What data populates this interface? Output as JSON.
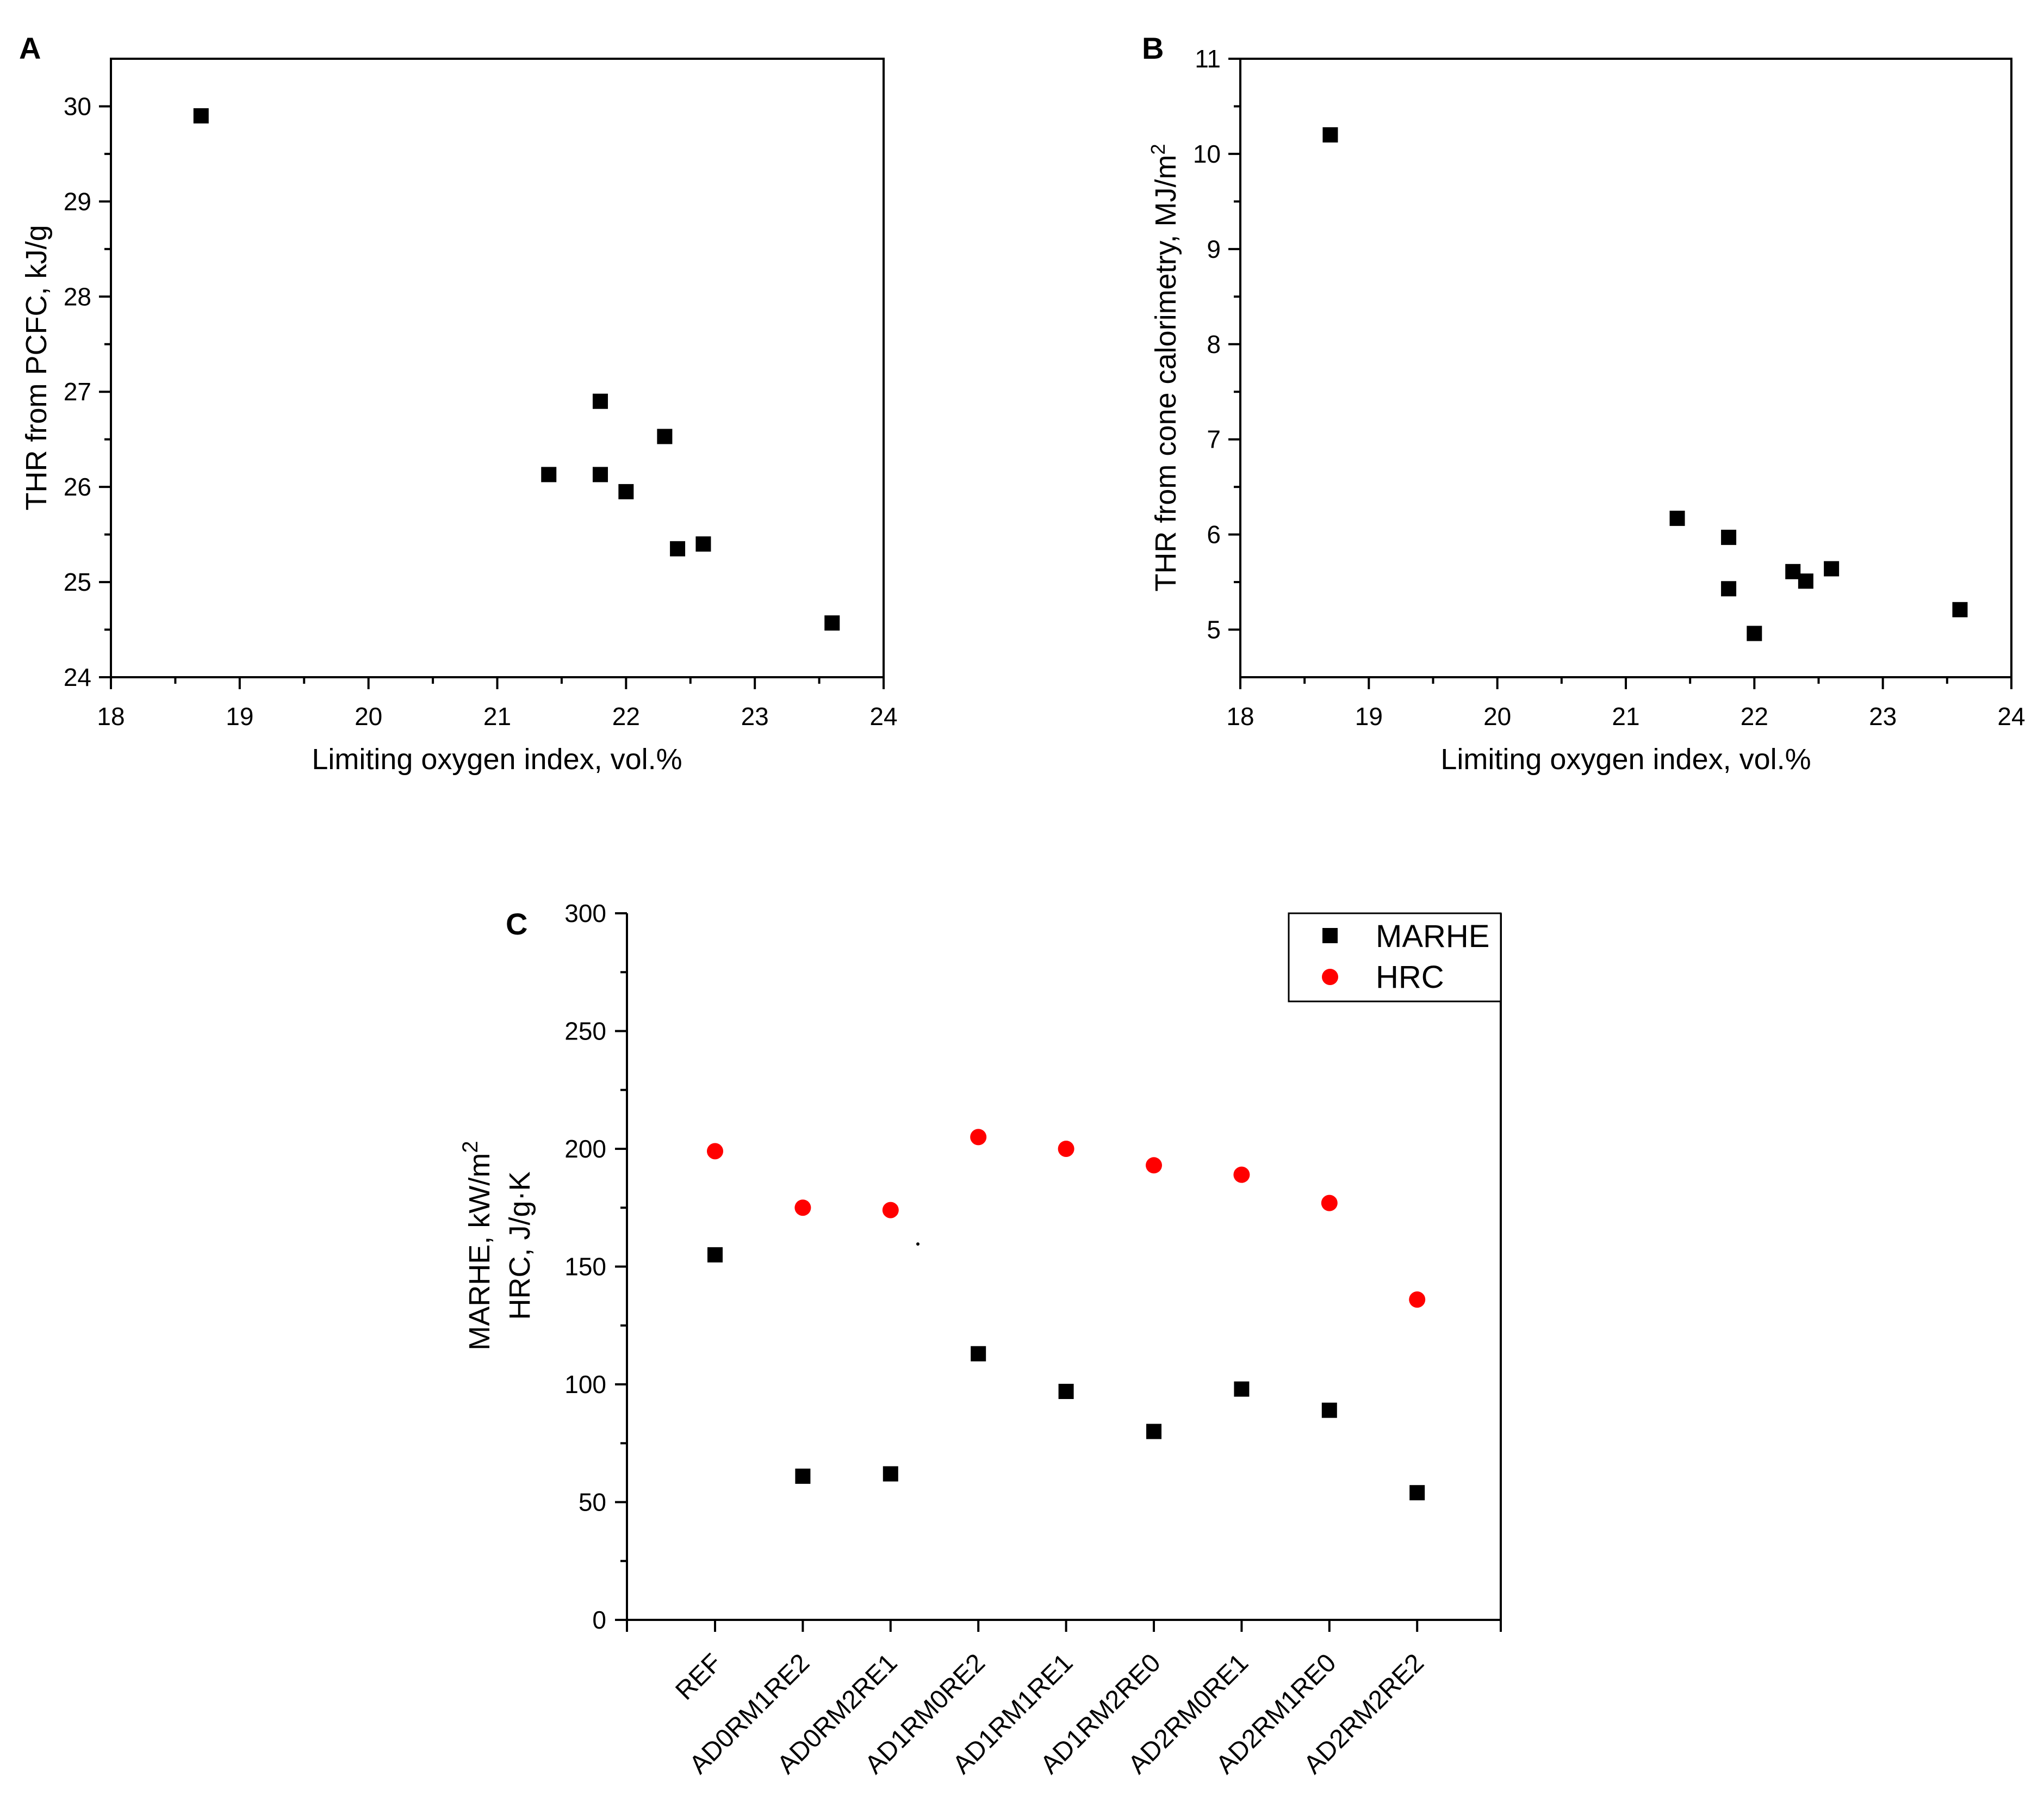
{
  "chart_data": [
    {
      "id": "A",
      "type": "scatter",
      "panel_label": "A",
      "xlabel": "Limiting oxygen index, vol.%",
      "ylabel": "THR from PCFC, kJ/g",
      "xlim": [
        18,
        24
      ],
      "ylim": [
        24,
        30.5
      ],
      "xticks": [
        18,
        19,
        20,
        21,
        22,
        23,
        24
      ],
      "yticks": [
        24,
        25,
        26,
        27,
        28,
        29,
        30
      ],
      "series": [
        {
          "name": "THR PCFC",
          "marker": "square",
          "color": "#000000",
          "points": [
            [
              18.7,
              29.9
            ],
            [
              21.4,
              26.13
            ],
            [
              21.8,
              26.9
            ],
            [
              21.8,
              26.13
            ],
            [
              22.0,
              25.95
            ],
            [
              22.3,
              26.53
            ],
            [
              22.4,
              25.35
            ],
            [
              22.6,
              25.4
            ],
            [
              23.6,
              24.57
            ]
          ]
        }
      ]
    },
    {
      "id": "B",
      "type": "scatter",
      "panel_label": "B",
      "xlabel": "Limiting oxygen index, vol.%",
      "ylabel": "THR from cone calorimetry, MJ/m",
      "ylabel_sup": "2",
      "xlim": [
        18,
        24
      ],
      "ylim": [
        4.5,
        11
      ],
      "xticks": [
        18,
        19,
        20,
        21,
        22,
        23,
        24
      ],
      "yticks": [
        5,
        6,
        7,
        8,
        9,
        10,
        11
      ],
      "series": [
        {
          "name": "THR cone",
          "marker": "square",
          "color": "#000000",
          "points": [
            [
              18.7,
              10.2
            ],
            [
              21.4,
              6.17
            ],
            [
              21.8,
              5.97
            ],
            [
              21.8,
              5.43
            ],
            [
              22.0,
              4.96
            ],
            [
              22.3,
              5.61
            ],
            [
              22.4,
              5.51
            ],
            [
              22.6,
              5.64
            ],
            [
              23.6,
              5.21
            ]
          ]
        }
      ]
    },
    {
      "id": "C",
      "type": "scatter",
      "panel_label": "C",
      "categories": [
        "REF",
        "AD0RM1RE2",
        "AD0RM2RE1",
        "AD1RM0RE2",
        "AD1RM1RE1",
        "AD1RM2RE0",
        "AD2RM0RE1",
        "AD2RM1RE0",
        "AD2RM2RE2"
      ],
      "ylabel_line1": "MARHE, kW/m",
      "ylabel_line1_sup": "2",
      "ylabel_line2": "HRC, J/g·K",
      "ylim": [
        0,
        300
      ],
      "yticks": [
        0,
        50,
        100,
        150,
        200,
        250,
        300
      ],
      "legend_position": "top-right",
      "series": [
        {
          "name": "MARHE",
          "marker": "square",
          "color": "#000000",
          "values": [
            155,
            61,
            62,
            113,
            97,
            80,
            98,
            89,
            54
          ]
        },
        {
          "name": "HRC",
          "marker": "circle",
          "color": "#ff0000",
          "values": [
            199,
            175,
            174,
            205,
            200,
            193,
            189,
            177,
            136
          ]
        }
      ]
    }
  ]
}
